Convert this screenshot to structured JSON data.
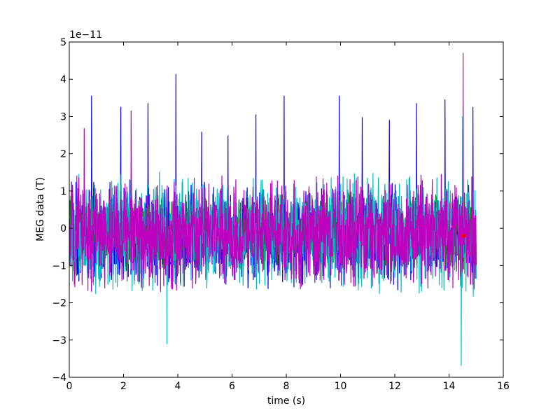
{
  "chart_data": {
    "type": "line",
    "xlabel": "time (s)",
    "ylabel": "MEG data (T)",
    "y_offset_label": "1e−11",
    "xlim": [
      0,
      16
    ],
    "ylim": [
      -4,
      5
    ],
    "x_ticks": [
      0,
      2,
      4,
      6,
      8,
      10,
      12,
      14,
      16
    ],
    "y_ticks": [
      -4,
      -3,
      -2,
      -1,
      0,
      1,
      2,
      3,
      4,
      5
    ],
    "x_tick_labels": [
      "0",
      "2",
      "4",
      "6",
      "8",
      "10",
      "12",
      "14",
      "16"
    ],
    "y_tick_labels": [
      "−4",
      "−3",
      "−2",
      "−1",
      "0",
      "1",
      "2",
      "3",
      "4",
      "5"
    ],
    "grid": false,
    "legend": "none",
    "data_x_range": [
      0,
      15
    ],
    "series": [
      {
        "color": "#0000ff",
        "typical_range": [
          -1.7,
          1.3
        ],
        "spikes": [
          {
            "x": 0.82,
            "y": 3.55
          },
          {
            "x": 1.9,
            "y": 3.25
          },
          {
            "x": 2.9,
            "y": 3.35
          },
          {
            "x": 3.93,
            "y": 4.13
          },
          {
            "x": 4.88,
            "y": 2.58
          },
          {
            "x": 5.85,
            "y": 2.48
          },
          {
            "x": 6.88,
            "y": 3.05
          },
          {
            "x": 7.92,
            "y": 3.55
          },
          {
            "x": 9.95,
            "y": 3.55
          },
          {
            "x": 10.8,
            "y": 2.97
          },
          {
            "x": 11.8,
            "y": 2.9
          },
          {
            "x": 12.8,
            "y": 3.35
          },
          {
            "x": 13.85,
            "y": 3.45
          },
          {
            "x": 14.88,
            "y": 3.25
          }
        ]
      },
      {
        "color": "#008000",
        "typical_range": [
          -1.2,
          1.0
        ],
        "spikes": []
      },
      {
        "color": "#00bfbf",
        "typical_range": [
          -1.9,
          1.6
        ],
        "spikes": [
          {
            "x": 3.6,
            "y": -3.1
          },
          {
            "x": 14.45,
            "y": -3.68
          },
          {
            "x": 14.5,
            "y": 3.0
          }
        ]
      },
      {
        "color": "#bf00bf",
        "typical_range": [
          -1.8,
          1.5
        ],
        "spikes": [
          {
            "x": 0.55,
            "y": 2.68
          },
          {
            "x": 2.28,
            "y": 3.15
          },
          {
            "x": 14.52,
            "y": 4.7
          }
        ]
      }
    ],
    "markers": [
      {
        "x": 14.55,
        "y": -0.2,
        "color": "#ff0000"
      }
    ]
  }
}
